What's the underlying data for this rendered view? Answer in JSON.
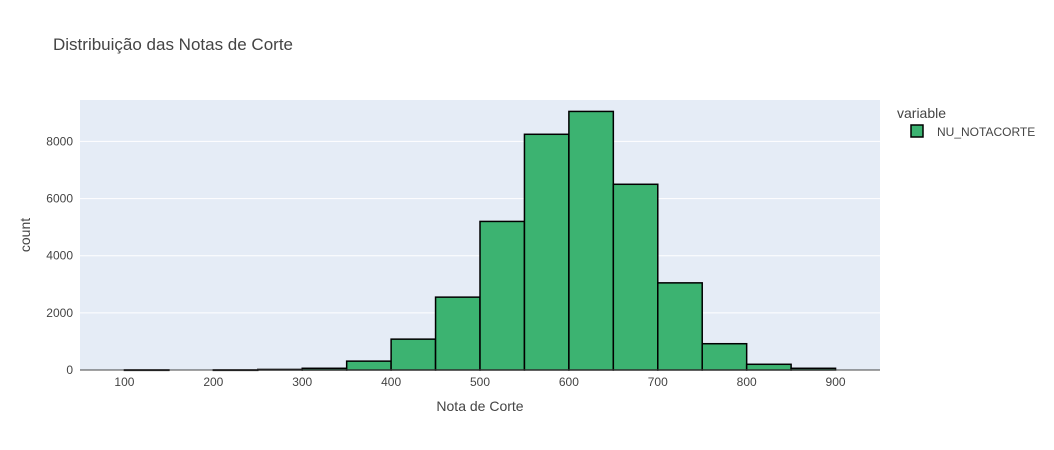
{
  "chart_data": {
    "type": "bar",
    "title": "Distribuição das Notas de Corte",
    "xlabel": "Nota de Corte",
    "ylabel": "count",
    "xlim": [
      50,
      950
    ],
    "ylim": [
      0,
      9450
    ],
    "x_ticks": [
      100,
      200,
      300,
      400,
      500,
      600,
      700,
      800,
      900
    ],
    "y_ticks": [
      0,
      2000,
      4000,
      6000,
      8000
    ],
    "bin_width": 50,
    "grid": true,
    "legend": {
      "title": "variable",
      "placement": "top-right"
    },
    "series": [
      {
        "name": "NU_NOTACORTE",
        "color": "#3cb371",
        "bins": [
          {
            "x0": 100,
            "x1": 150,
            "count": 5
          },
          {
            "x0": 150,
            "x1": 200,
            "count": 0
          },
          {
            "x0": 200,
            "x1": 250,
            "count": 5
          },
          {
            "x0": 250,
            "x1": 300,
            "count": 20
          },
          {
            "x0": 300,
            "x1": 350,
            "count": 60
          },
          {
            "x0": 350,
            "x1": 400,
            "count": 310
          },
          {
            "x0": 400,
            "x1": 450,
            "count": 1080
          },
          {
            "x0": 450,
            "x1": 500,
            "count": 2550
          },
          {
            "x0": 500,
            "x1": 550,
            "count": 5200
          },
          {
            "x0": 550,
            "x1": 600,
            "count": 8250
          },
          {
            "x0": 600,
            "x1": 650,
            "count": 9050
          },
          {
            "x0": 650,
            "x1": 700,
            "count": 6500
          },
          {
            "x0": 700,
            "x1": 750,
            "count": 3050
          },
          {
            "x0": 750,
            "x1": 800,
            "count": 920
          },
          {
            "x0": 800,
            "x1": 850,
            "count": 200
          },
          {
            "x0": 850,
            "x1": 900,
            "count": 60
          }
        ]
      }
    ]
  },
  "colors": {
    "plot_bg": "#e5ecf6",
    "grid": "#ffffff",
    "bar_fill": "#3cb371",
    "bar_line": "#000000",
    "text": "#444444"
  }
}
